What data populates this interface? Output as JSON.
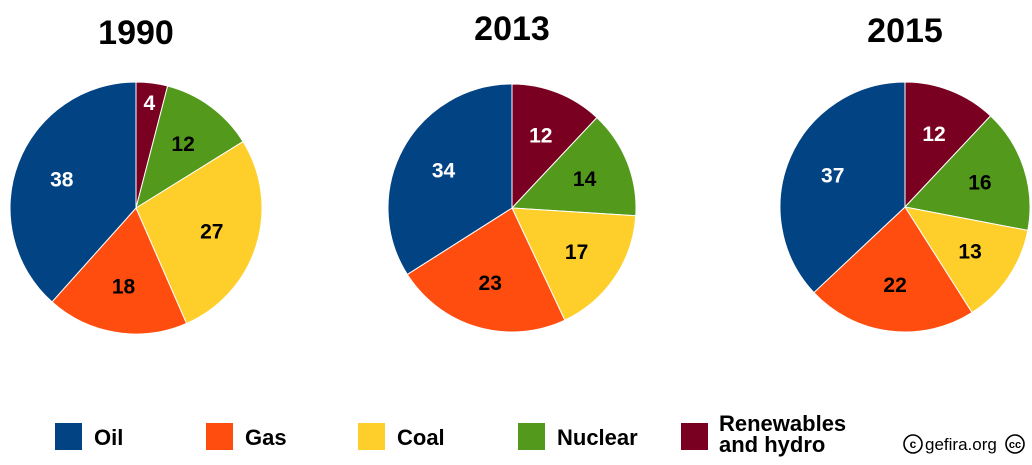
{
  "chart_data": [
    {
      "type": "pie",
      "title": "1990",
      "categories": [
        "Oil",
        "Gas",
        "Coal",
        "Nuclear",
        "Renewables and hydro"
      ],
      "values": [
        38,
        18,
        27,
        12,
        4
      ]
    },
    {
      "type": "pie",
      "title": "2013",
      "categories": [
        "Oil",
        "Gas",
        "Coal",
        "Nuclear",
        "Renewables and hydro"
      ],
      "values": [
        34,
        23,
        17,
        14,
        12
      ]
    },
    {
      "type": "pie",
      "title": "2015",
      "categories": [
        "Oil",
        "Gas",
        "Coal",
        "Nuclear",
        "Renewables and hydro"
      ],
      "values": [
        37,
        22,
        13,
        16,
        12
      ]
    }
  ],
  "legend": {
    "placement": "bottom",
    "items": [
      {
        "label": "Oil",
        "color": "#024383"
      },
      {
        "label": "Gas",
        "color": "#fe4d0f"
      },
      {
        "label": "Coal",
        "color": "#fecf2b"
      },
      {
        "label": "Nuclear",
        "color": "#52991c"
      },
      {
        "label": "Renewables and hydro",
        "line1": "Renewables",
        "line2": "and hydro",
        "color": "#7a0021"
      }
    ]
  },
  "label_colors": {
    "Oil": "#ffffff",
    "Gas": "#000000",
    "Coal": "#000000",
    "Nuclear": "#000000",
    "Renewables and hydro": "#ffffff"
  },
  "credit": {
    "symbol": "©",
    "text": "gefira.org",
    "license": "cc"
  }
}
